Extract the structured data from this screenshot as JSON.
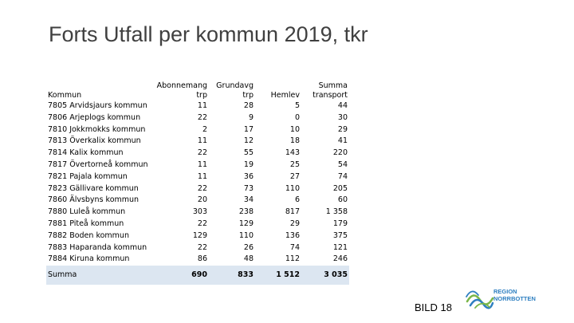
{
  "slide": {
    "title": "Forts Utfall per kommun 2019, tkr",
    "footer_label": "BILD 18",
    "logo_lines": [
      "REGION",
      "NORRBOTTEN"
    ]
  },
  "table": {
    "headers": [
      [
        "Kommun"
      ],
      [
        "Abonnemang",
        "trp"
      ],
      [
        "Grundavg",
        "trp"
      ],
      [
        "Hemlev"
      ],
      [
        "Summa",
        "transport"
      ]
    ],
    "rows": [
      [
        "7805 Arvidsjaurs kommun",
        "11",
        "28",
        "5",
        "44"
      ],
      [
        "7806 Arjeplogs kommun",
        "22",
        "9",
        "0",
        "30"
      ],
      [
        "7810 Jokkmokks kommun",
        "2",
        "17",
        "10",
        "29"
      ],
      [
        "7813 Överkalix kommun",
        "11",
        "12",
        "18",
        "41"
      ],
      [
        "7814 Kalix kommun",
        "22",
        "55",
        "143",
        "220"
      ],
      [
        "7817 Övertorneå kommun",
        "11",
        "19",
        "25",
        "54"
      ],
      [
        "7821 Pajala kommun",
        "11",
        "36",
        "27",
        "74"
      ],
      [
        "7823 Gällivare kommun",
        "22",
        "73",
        "110",
        "205"
      ],
      [
        "7860 Älvsbyns kommun",
        "20",
        "34",
        "6",
        "60"
      ],
      [
        "7880 Luleå kommun",
        "303",
        "238",
        "817",
        "1 358"
      ],
      [
        "7881 Piteå kommun",
        "22",
        "129",
        "29",
        "179"
      ],
      [
        "7882 Boden kommun",
        "129",
        "110",
        "136",
        "375"
      ],
      [
        "7883 Haparanda kommun",
        "22",
        "26",
        "74",
        "121"
      ],
      [
        "7884 Kiruna kommun",
        "86",
        "48",
        "112",
        "246"
      ]
    ],
    "summary": [
      "Summa",
      "690",
      "833",
      "1 512",
      "3 035"
    ]
  },
  "colors": {
    "title": "#404040",
    "summary_bg": "#dce6f1",
    "logo_blue": "#2e7fc1",
    "logo_green": "#7ab648"
  }
}
